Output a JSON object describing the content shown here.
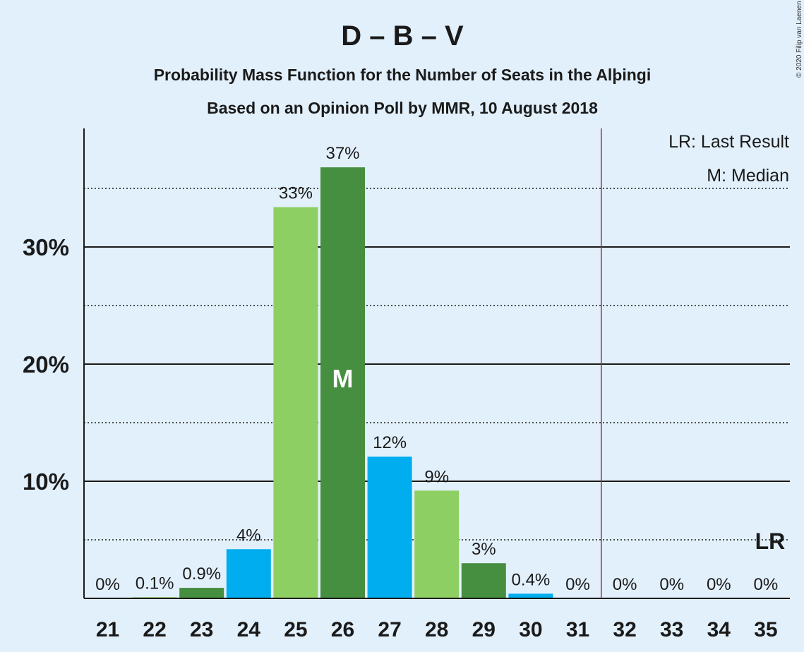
{
  "header": {
    "title": "D – B – V",
    "subtitle": "Probability Mass Function for the Number of Seats in the Alþingi",
    "subtitle2": "Based on an Opinion Poll by MMR, 10 August 2018",
    "copyright": "© 2020 Filip van Laenen"
  },
  "legend": {
    "last_result": "LR: Last Result",
    "median": "M: Median"
  },
  "colors": {
    "background": "#e2f0fc",
    "light_green": "#8dcf63",
    "dark_green": "#468e40",
    "blue": "#00adee",
    "majority_line": "#c0202e",
    "text": "#1a1a1a"
  },
  "chart_data": {
    "type": "bar",
    "categories": [
      "21",
      "22",
      "23",
      "24",
      "25",
      "26",
      "27",
      "28",
      "29",
      "30",
      "31",
      "32",
      "33",
      "34",
      "35"
    ],
    "values": [
      0,
      0.1,
      0.9,
      4.2,
      33.4,
      36.8,
      12.1,
      9.2,
      3.0,
      0.4,
      0,
      0,
      0,
      0,
      0
    ],
    "labels": [
      "0%",
      "0.1%",
      "0.9%",
      "4%",
      "33%",
      "37%",
      "12%",
      "9%",
      "3%",
      "0.4%",
      "0%",
      "0%",
      "0%",
      "0%",
      "0%"
    ],
    "bar_colors": [
      "#8dcf63",
      "#8dcf63",
      "#468e40",
      "#00adee",
      "#8dcf63",
      "#468e40",
      "#00adee",
      "#8dcf63",
      "#468e40",
      "#00adee",
      "#00adee",
      "#8dcf63",
      "#468e40",
      "#00adee",
      "#8dcf63"
    ],
    "ylim": [
      0,
      40
    ],
    "yticks": [
      10,
      20,
      30
    ],
    "ytick_labels": [
      "10%",
      "20%",
      "30%"
    ],
    "minor_gridlines": [
      5,
      15,
      25,
      35
    ],
    "majority_line_after": "31",
    "median_category": "26",
    "median_marker": "M",
    "last_result_category": "35",
    "last_result_marker": "LR",
    "xlabel": "",
    "ylabel": ""
  }
}
